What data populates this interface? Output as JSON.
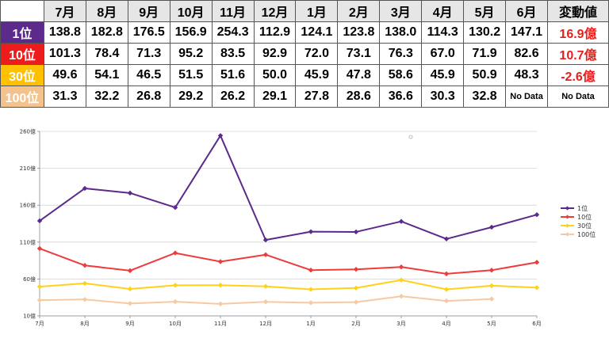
{
  "table": {
    "months": [
      "7月",
      "8月",
      "9月",
      "10月",
      "11月",
      "12月",
      "1月",
      "2月",
      "3月",
      "4月",
      "5月",
      "6月"
    ],
    "change_header": "変動値",
    "rows": [
      {
        "rank": "1位",
        "color": "#5b2a8a",
        "values": [
          "138.8",
          "182.8",
          "176.5",
          "156.9",
          "254.3",
          "112.9",
          "124.1",
          "123.8",
          "138.0",
          "114.3",
          "130.2",
          "147.1"
        ],
        "change": "16.9億"
      },
      {
        "rank": "10位",
        "color": "#ee1c1c",
        "values": [
          "101.3",
          "78.4",
          "71.3",
          "95.2",
          "83.5",
          "92.9",
          "72.0",
          "73.1",
          "76.3",
          "67.0",
          "71.9",
          "82.6"
        ],
        "change": "10.7億"
      },
      {
        "rank": "30位",
        "color": "#ffc000",
        "values": [
          "49.6",
          "54.1",
          "46.5",
          "51.5",
          "51.6",
          "50.0",
          "45.9",
          "47.8",
          "58.6",
          "45.9",
          "50.9",
          "48.3"
        ],
        "change": "-2.6億"
      },
      {
        "rank": "100位",
        "color": "#f4c28c",
        "values": [
          "31.3",
          "32.2",
          "26.8",
          "29.2",
          "26.2",
          "29.1",
          "27.8",
          "28.6",
          "36.6",
          "30.3",
          "32.8",
          "No Data"
        ],
        "change": "No Data"
      }
    ]
  },
  "chart_data": {
    "type": "line",
    "categories": [
      "7月",
      "8月",
      "9月",
      "10月",
      "11月",
      "12月",
      "1月",
      "2月",
      "3月",
      "4月",
      "5月",
      "6月"
    ],
    "y_ticks": [
      "10億",
      "60億",
      "110億",
      "160億",
      "210億",
      "260億"
    ],
    "ylim": [
      10,
      260
    ],
    "legend_position": "right",
    "series": [
      {
        "name": "1位",
        "color": "#5b2a8a",
        "marker": "diamond",
        "values": [
          138.8,
          182.8,
          176.5,
          156.9,
          254.3,
          112.9,
          124.1,
          123.8,
          138.0,
          114.3,
          130.2,
          147.1
        ]
      },
      {
        "name": "10位",
        "color": "#ee3b3b",
        "marker": "diamond",
        "values": [
          101.3,
          78.4,
          71.3,
          95.2,
          83.5,
          92.9,
          72.0,
          73.1,
          76.3,
          67.0,
          71.9,
          82.6
        ]
      },
      {
        "name": "30位",
        "color": "#ffd21a",
        "marker": "diamond",
        "values": [
          49.6,
          54.1,
          46.5,
          51.5,
          51.6,
          50.0,
          45.9,
          47.8,
          58.6,
          45.9,
          50.9,
          48.3
        ]
      },
      {
        "name": "100位",
        "color": "#f7c9a3",
        "marker": "diamond",
        "values": [
          31.3,
          32.2,
          26.8,
          29.2,
          26.2,
          29.1,
          27.8,
          28.6,
          36.6,
          30.3,
          32.8,
          null
        ]
      }
    ]
  }
}
